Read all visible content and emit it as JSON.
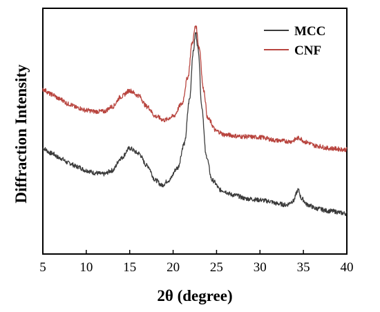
{
  "chart_data": {
    "type": "line",
    "title": "",
    "xlabel": "2θ (degree)",
    "ylabel": "Diffraction Intensity",
    "xlim": [
      5,
      40
    ],
    "ylim": [
      0,
      1
    ],
    "x_ticks": [
      "5",
      "10",
      "15",
      "20",
      "25",
      "30",
      "35",
      "40"
    ],
    "y_ticks_shown": false,
    "grid": false,
    "legend_position": "top-right",
    "series": [
      {
        "name": "MCC",
        "color": "#3a3a3a",
        "points": [
          [
            5,
            0.43
          ],
          [
            6,
            0.41
          ],
          [
            7,
            0.39
          ],
          [
            8,
            0.37
          ],
          [
            9,
            0.355
          ],
          [
            10,
            0.34
          ],
          [
            11,
            0.33
          ],
          [
            12,
            0.325
          ],
          [
            13,
            0.34
          ],
          [
            14,
            0.39
          ],
          [
            15,
            0.43
          ],
          [
            16,
            0.41
          ],
          [
            17,
            0.36
          ],
          [
            18,
            0.3
          ],
          [
            18.7,
            0.28
          ],
          [
            19.5,
            0.3
          ],
          [
            20.5,
            0.35
          ],
          [
            21.3,
            0.45
          ],
          [
            21.9,
            0.63
          ],
          [
            22.3,
            0.82
          ],
          [
            22.6,
            0.9
          ],
          [
            22.9,
            0.83
          ],
          [
            23.3,
            0.6
          ],
          [
            23.8,
            0.4
          ],
          [
            24.5,
            0.3
          ],
          [
            25.5,
            0.26
          ],
          [
            27,
            0.24
          ],
          [
            28.5,
            0.225
          ],
          [
            30,
            0.22
          ],
          [
            31,
            0.215
          ],
          [
            32,
            0.205
          ],
          [
            33,
            0.2
          ],
          [
            33.8,
            0.215
          ],
          [
            34.4,
            0.26
          ],
          [
            34.8,
            0.225
          ],
          [
            35.5,
            0.2
          ],
          [
            36.5,
            0.185
          ],
          [
            38,
            0.175
          ],
          [
            40,
            0.165
          ]
        ]
      },
      {
        "name": "CNF",
        "color": "#b8443e",
        "points": [
          [
            5,
            0.67
          ],
          [
            6,
            0.65
          ],
          [
            7,
            0.63
          ],
          [
            8,
            0.61
          ],
          [
            9,
            0.595
          ],
          [
            10,
            0.585
          ],
          [
            11,
            0.58
          ],
          [
            12,
            0.58
          ],
          [
            13,
            0.6
          ],
          [
            14,
            0.64
          ],
          [
            15,
            0.665
          ],
          [
            16,
            0.645
          ],
          [
            17,
            0.6
          ],
          [
            18,
            0.56
          ],
          [
            19,
            0.545
          ],
          [
            20,
            0.56
          ],
          [
            21,
            0.61
          ],
          [
            21.7,
            0.72
          ],
          [
            22.2,
            0.86
          ],
          [
            22.6,
            0.93
          ],
          [
            23,
            0.84
          ],
          [
            23.5,
            0.67
          ],
          [
            24,
            0.55
          ],
          [
            25,
            0.5
          ],
          [
            26,
            0.485
          ],
          [
            28,
            0.478
          ],
          [
            30,
            0.475
          ],
          [
            32,
            0.462
          ],
          [
            33.5,
            0.458
          ],
          [
            34.5,
            0.472
          ],
          [
            35.3,
            0.455
          ],
          [
            36.5,
            0.44
          ],
          [
            38,
            0.43
          ],
          [
            40,
            0.425
          ]
        ]
      }
    ]
  }
}
